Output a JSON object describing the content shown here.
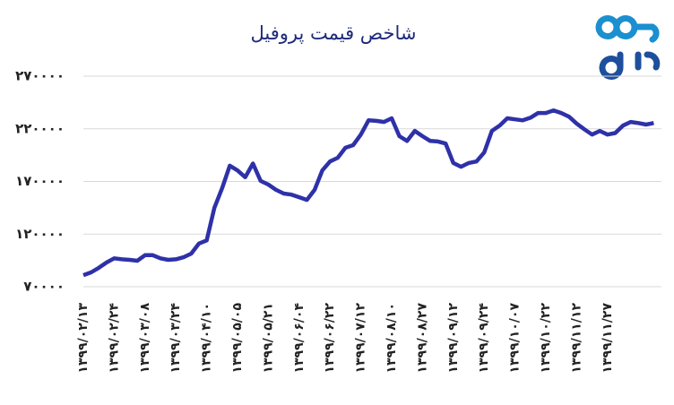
{
  "chart_data": {
    "type": "line",
    "title": "شاخص قیمت پروفیل",
    "color": "#2e31a8",
    "grid": true,
    "ylim": [
      70000,
      270000
    ],
    "yticks": [
      {
        "value": 70000,
        "label": "۷۰۰۰۰"
      },
      {
        "value": 120000,
        "label": "۱۲۰۰۰۰"
      },
      {
        "value": 170000,
        "label": "۱۷۰۰۰۰"
      },
      {
        "value": 220000,
        "label": "۲۲۰۰۰۰"
      },
      {
        "value": 270000,
        "label": "۲۷۰۰۰۰"
      }
    ],
    "categories": [
      "۱۳۹۹/۰۲/۱۳",
      null,
      null,
      null,
      "۱۳۹۹/۰۲/۲۴",
      null,
      null,
      null,
      "۱۳۹۹/۰۳/۰۸",
      null,
      null,
      null,
      "۱۳۹۹/۰۳/۲۴",
      null,
      null,
      null,
      "۱۳۹۹/۰۴/۱۰",
      null,
      null,
      null,
      "۱۳۹۹/۰۵/۰۵",
      null,
      null,
      null,
      "۱۳۹۹/۰۵/۲۱",
      null,
      null,
      null,
      "۱۳۹۹/۰۶/۰۴",
      null,
      null,
      null,
      "۱۳۹۹/۰۶/۲۲",
      null,
      null,
      null,
      "۱۳۹۹/۰۷/۱۲",
      null,
      null,
      null,
      "۱۳۹۹/۰۸/۱۰",
      null,
      null,
      null,
      "۱۳۹۹/۰۸/۲۷",
      null,
      null,
      null,
      "۱۳۹۹/۰۹/۱۲",
      null,
      null,
      null,
      "۱۳۹۹/۰۹/۲۴",
      null,
      null,
      null,
      "۱۳۹۹/۱۰/۰۷",
      null,
      null,
      null,
      "۱۳۹۹/۱۰/۲۲",
      null,
      null,
      null,
      "۱۳۹۹/۱۱/۱۲",
      null,
      null,
      null,
      "۱۳۹۹/۱۱/۲۷",
      null,
      null,
      null,
      null,
      null,
      null
    ],
    "values": [
      81000,
      83600,
      88000,
      93000,
      97000,
      96000,
      95500,
      94700,
      100000,
      100000,
      97000,
      95500,
      96000,
      98000,
      101500,
      111000,
      114000,
      145000,
      163500,
      185000,
      180500,
      174000,
      187000,
      170500,
      167000,
      162000,
      158500,
      157500,
      155000,
      152500,
      162000,
      180500,
      189000,
      192500,
      202000,
      204500,
      214500,
      228000,
      227500,
      226500,
      230000,
      213000,
      208500,
      218000,
      213000,
      208500,
      208000,
      206000,
      187500,
      184000,
      187500,
      189000,
      197500,
      218000,
      223000,
      230000,
      229000,
      228000,
      230500,
      235000,
      235000,
      237500,
      235000,
      231500,
      225000,
      219500,
      214500,
      218000,
      214500,
      216000,
      223000,
      226500,
      225500,
      224000,
      225500
    ]
  }
}
